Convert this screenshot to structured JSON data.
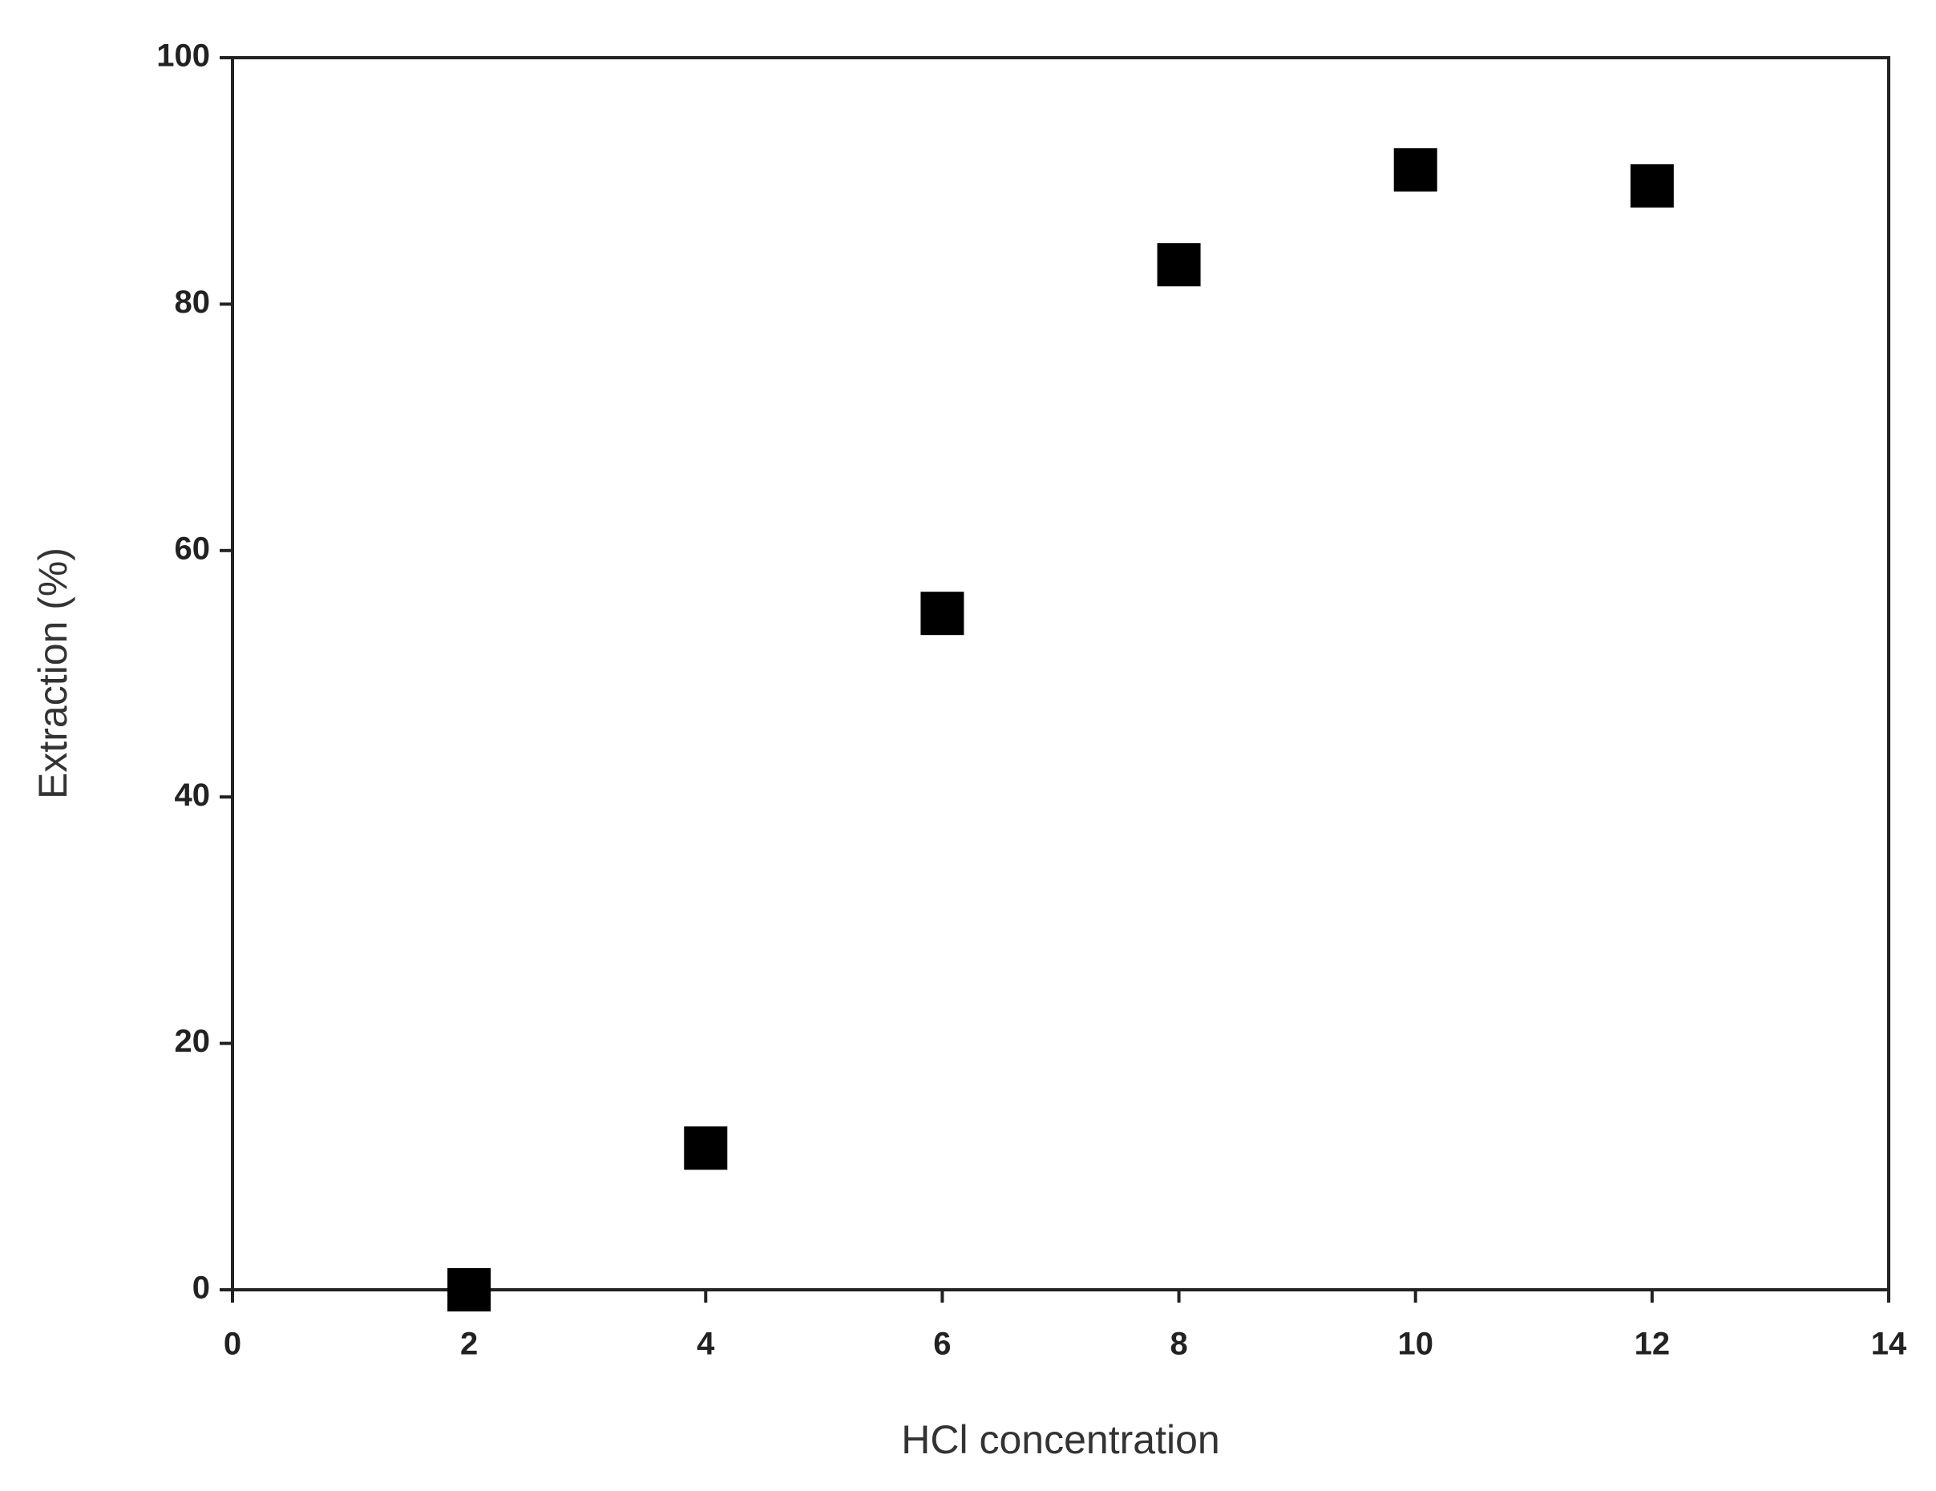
{
  "chart_data": {
    "type": "scatter",
    "x_label": "HCl concentration",
    "y_label": "Extraction (%)",
    "series": [
      {
        "x": [
          2,
          4,
          6,
          8,
          10,
          12
        ],
        "values": [
          0,
          11.5,
          54.9,
          83.2,
          90.9,
          89.6
        ],
        "color": "#000000",
        "marker": "square"
      }
    ],
    "xlim": [
      0,
      14
    ],
    "xticks": [
      0,
      2,
      4,
      6,
      8,
      10,
      12,
      14
    ],
    "ylim": [
      0,
      100
    ],
    "yticks": [
      0,
      20,
      40,
      60,
      80,
      100
    ],
    "grid": false
  }
}
